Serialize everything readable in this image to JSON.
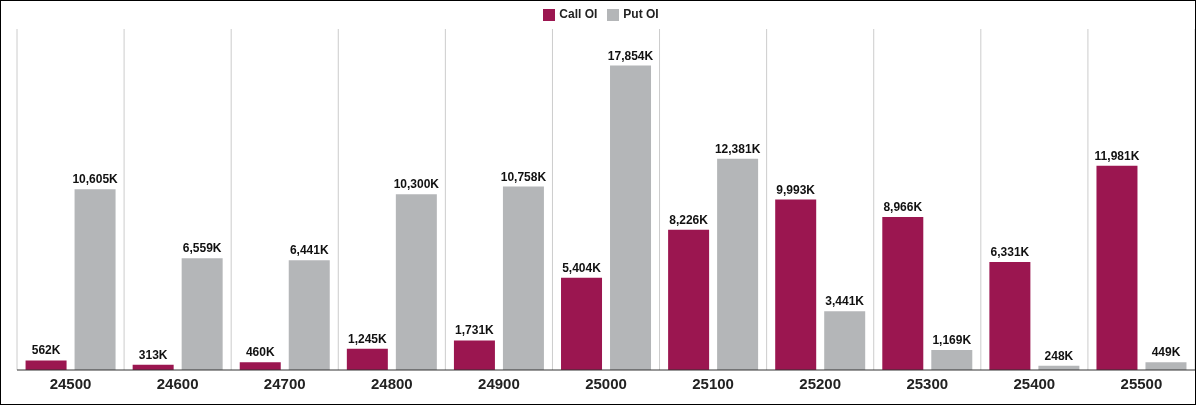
{
  "chart_data": {
    "type": "bar",
    "categories": [
      "24500",
      "24600",
      "24700",
      "24800",
      "24900",
      "25000",
      "25100",
      "25200",
      "25300",
      "25400",
      "25500"
    ],
    "series": [
      {
        "name": "Call OI",
        "color": "#9b1650",
        "values": [
          562,
          313,
          460,
          1245,
          1731,
          5404,
          8226,
          9993,
          8966,
          6331,
          11981
        ],
        "value_labels": [
          "562K",
          "313K",
          "460K",
          "1,245K",
          "1,731K",
          "5,404K",
          "8,226K",
          "9,993K",
          "8,966K",
          "6,331K",
          "11,981K"
        ]
      },
      {
        "name": "Put OI",
        "color": "#b4b6b8",
        "values": [
          10605,
          6559,
          6441,
          10300,
          10758,
          17854,
          12381,
          3441,
          1169,
          248,
          449
        ],
        "value_labels": [
          "10,605K",
          "6,559K",
          "6,441K",
          "10,300K",
          "10,758K",
          "17,854K",
          "12,381K",
          "3,441K",
          "1,169K",
          "248K",
          "449K"
        ]
      }
    ],
    "legend": "top",
    "grid": "x"
  }
}
